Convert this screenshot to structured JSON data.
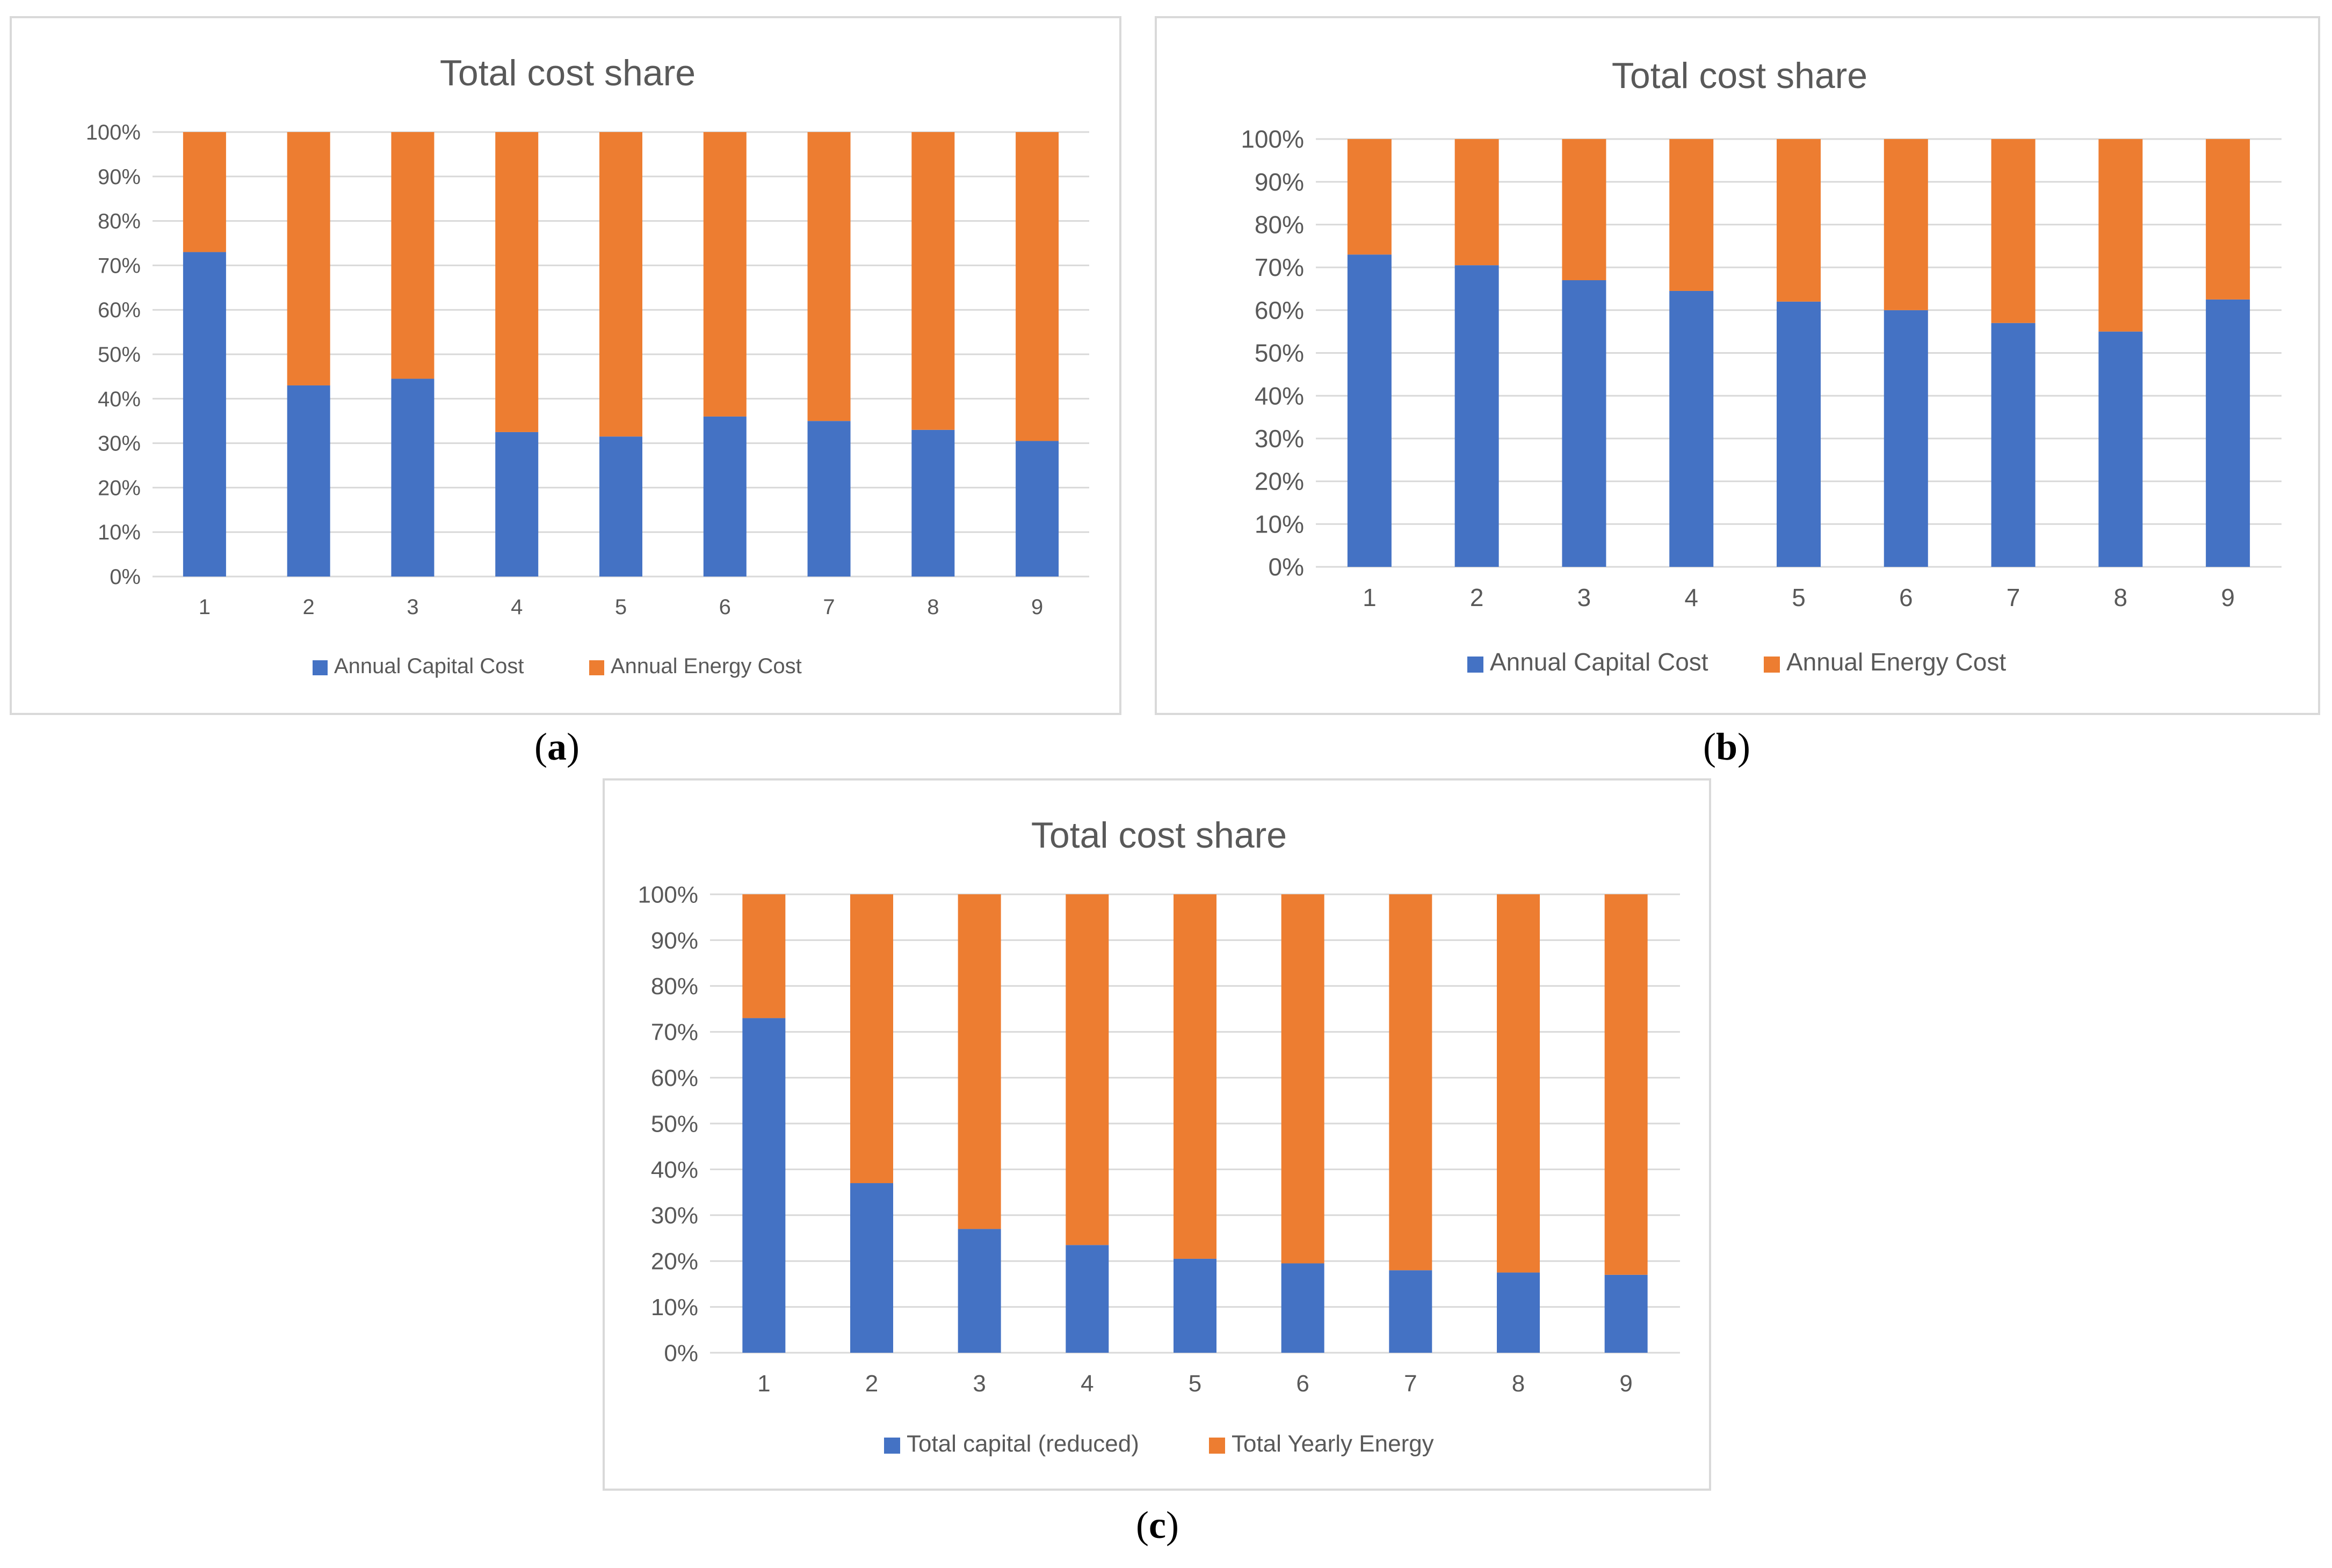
{
  "colors": {
    "blue": "#4472c4",
    "orange": "#ed7d31",
    "grid": "#d9d9d9",
    "text": "#595959"
  },
  "captions": [
    "a",
    "b",
    "c"
  ],
  "chart_data": [
    {
      "type": "bar",
      "stacked": true,
      "title": "Total cost share",
      "categories": [
        "1",
        "2",
        "3",
        "4",
        "5",
        "6",
        "7",
        "8",
        "9"
      ],
      "ylim": [
        0,
        100
      ],
      "yticks": [
        "0%",
        "10%",
        "20%",
        "30%",
        "40%",
        "50%",
        "60%",
        "70%",
        "80%",
        "90%",
        "100%"
      ],
      "grid": true,
      "legend_position": "bottom",
      "series": [
        {
          "name": "Annual Capital Cost",
          "color": "#4472c4",
          "values": [
            73,
            43,
            44.5,
            32.5,
            31.5,
            36,
            35,
            33,
            30.5
          ]
        },
        {
          "name": "Annual Energy Cost",
          "color": "#ed7d31",
          "values": [
            27,
            57,
            55.5,
            67.5,
            68.5,
            64,
            65,
            67,
            69.5
          ]
        }
      ]
    },
    {
      "type": "bar",
      "stacked": true,
      "title": "Total cost share",
      "categories": [
        "1",
        "2",
        "3",
        "4",
        "5",
        "6",
        "7",
        "8",
        "9"
      ],
      "ylim": [
        0,
        100
      ],
      "yticks": [
        "0%",
        "10%",
        "20%",
        "30%",
        "40%",
        "50%",
        "60%",
        "70%",
        "80%",
        "90%",
        "100%"
      ],
      "grid": true,
      "legend_position": "bottom",
      "series": [
        {
          "name": "Annual Capital Cost",
          "color": "#4472c4",
          "values": [
            73,
            70.5,
            67,
            64.5,
            62,
            60,
            57,
            55,
            62.5
          ]
        },
        {
          "name": "Annual Energy Cost",
          "color": "#ed7d31",
          "values": [
            27,
            29.5,
            33,
            35.5,
            38,
            40,
            43,
            45,
            37.5
          ]
        }
      ]
    },
    {
      "type": "bar",
      "stacked": true,
      "title": "Total cost share",
      "categories": [
        "1",
        "2",
        "3",
        "4",
        "5",
        "6",
        "7",
        "8",
        "9"
      ],
      "ylim": [
        0,
        100
      ],
      "yticks": [
        "0%",
        "10%",
        "20%",
        "30%",
        "40%",
        "50%",
        "60%",
        "70%",
        "80%",
        "90%",
        "100%"
      ],
      "grid": true,
      "legend_position": "bottom",
      "series": [
        {
          "name": "Total capital (reduced)",
          "color": "#4472c4",
          "values": [
            73,
            37,
            27,
            23.5,
            20.5,
            19.5,
            18,
            17.5,
            17
          ]
        },
        {
          "name": "Total Yearly Energy",
          "color": "#ed7d31",
          "values": [
            27,
            63,
            73,
            76.5,
            79.5,
            80.5,
            82,
            82.5,
            83
          ]
        }
      ]
    }
  ]
}
